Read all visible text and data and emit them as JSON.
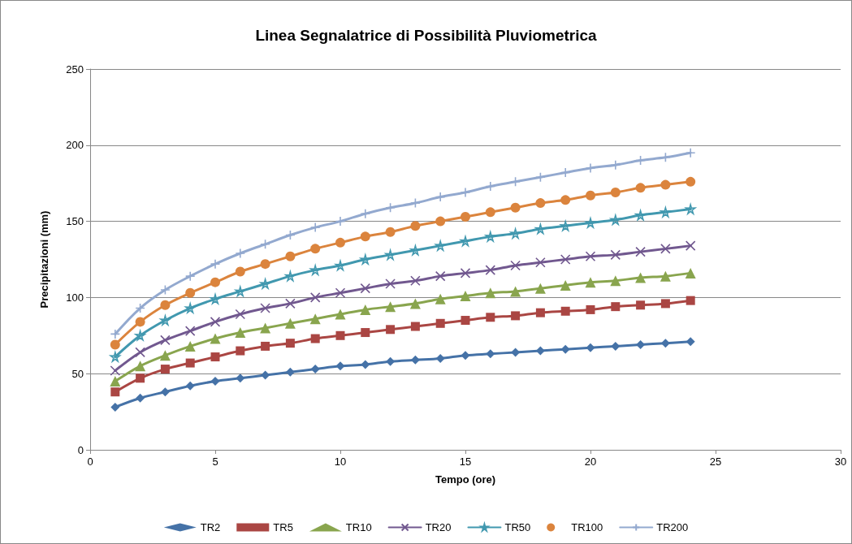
{
  "chart_data": {
    "type": "line",
    "title": "Linea Segnalatrice di Possibilità Pluviometrica",
    "xlabel": "Tempo (ore)",
    "ylabel": "Precipitazioni (mm)",
    "x": [
      1,
      2,
      3,
      4,
      5,
      6,
      7,
      8,
      9,
      10,
      11,
      12,
      13,
      14,
      15,
      16,
      17,
      18,
      19,
      20,
      21,
      22,
      23,
      24
    ],
    "xlim": [
      0,
      30
    ],
    "xticks": [
      0,
      5,
      10,
      15,
      20,
      25,
      30
    ],
    "ylim": [
      0,
      250
    ],
    "yticks": [
      0,
      50,
      100,
      150,
      200,
      250
    ],
    "grid": "y",
    "legend": "bottom",
    "line_style": "solid",
    "series": [
      {
        "name": "TR2",
        "color": "#4572a7",
        "marker": "diamond",
        "values": [
          28,
          34,
          38,
          42,
          45,
          47,
          49,
          51,
          53,
          55,
          56,
          58,
          59,
          60,
          62,
          63,
          64,
          65,
          66,
          67,
          68,
          69,
          70,
          71
        ]
      },
      {
        "name": "TR5",
        "color": "#aa4643",
        "marker": "square",
        "values": [
          38,
          47,
          53,
          57,
          61,
          65,
          68,
          70,
          73,
          75,
          77,
          79,
          81,
          83,
          85,
          87,
          88,
          90,
          91,
          92,
          94,
          95,
          96,
          98
        ]
      },
      {
        "name": "TR10",
        "color": "#89a54e",
        "marker": "triangle",
        "values": [
          45,
          55,
          62,
          68,
          73,
          77,
          80,
          83,
          86,
          89,
          92,
          94,
          96,
          99,
          101,
          103,
          104,
          106,
          108,
          110,
          111,
          113,
          114,
          116
        ]
      },
      {
        "name": "TR20",
        "color": "#71588f",
        "marker": "cross",
        "values": [
          52,
          64,
          72,
          78,
          84,
          89,
          93,
          96,
          100,
          103,
          106,
          109,
          111,
          114,
          116,
          118,
          121,
          123,
          125,
          127,
          128,
          130,
          132,
          134
        ]
      },
      {
        "name": "TR50",
        "color": "#4198af",
        "marker": "star",
        "values": [
          61,
          75,
          85,
          93,
          99,
          104,
          109,
          114,
          118,
          121,
          125,
          128,
          131,
          134,
          137,
          140,
          142,
          145,
          147,
          149,
          151,
          154,
          156,
          158
        ]
      },
      {
        "name": "TR100",
        "color": "#db843d",
        "marker": "circle",
        "values": [
          69,
          84,
          95,
          103,
          110,
          117,
          122,
          127,
          132,
          136,
          140,
          143,
          147,
          150,
          153,
          156,
          159,
          162,
          164,
          167,
          169,
          172,
          174,
          176
        ]
      },
      {
        "name": "TR200",
        "color": "#93a9cf",
        "marker": "plus",
        "values": [
          76,
          93,
          105,
          114,
          122,
          129,
          135,
          141,
          146,
          150,
          155,
          159,
          162,
          166,
          169,
          173,
          176,
          179,
          182,
          185,
          187,
          190,
          192,
          195
        ]
      }
    ]
  }
}
